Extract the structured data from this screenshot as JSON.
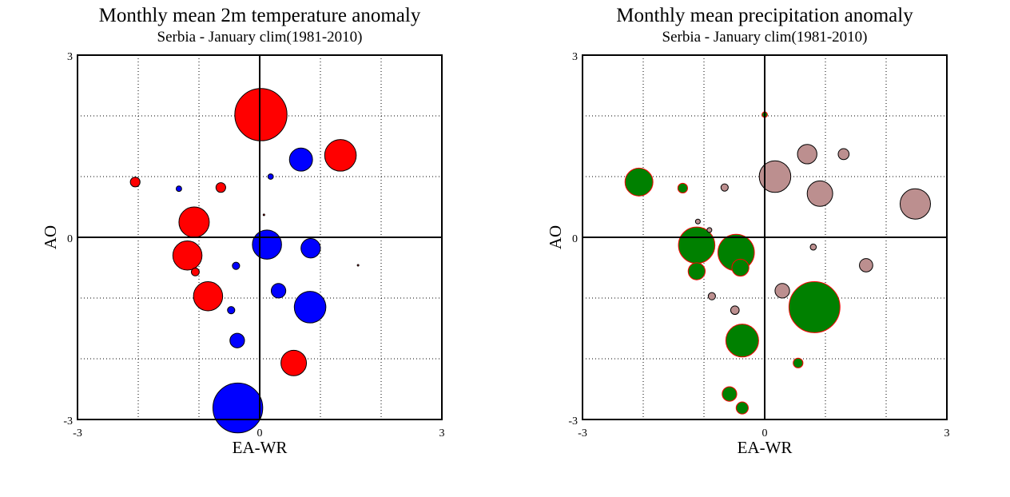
{
  "chart_data": [
    {
      "type": "scatter",
      "title": "Monthly mean 2m temperature anomaly",
      "subtitle": "Serbia - January  clim(1981-2010)",
      "xlabel": "EA-WR",
      "ylabel": "AO",
      "xlim": [
        -3,
        3
      ],
      "ylim": [
        -3,
        3
      ],
      "xticks": [
        "-3",
        "0",
        "3"
      ],
      "yticks": [
        "-3",
        "0",
        "3"
      ],
      "grid": true,
      "colors": {
        "positive": "#ff0000",
        "negative": "#0000ff"
      },
      "points": [
        {
          "x": 0.02,
          "y": 2.02,
          "s": 0.43,
          "sign": "pos"
        },
        {
          "x": 1.33,
          "y": 1.35,
          "s": 0.26,
          "sign": "pos"
        },
        {
          "x": 0.68,
          "y": 1.28,
          "s": 0.19,
          "sign": "neg"
        },
        {
          "x": -2.05,
          "y": 0.91,
          "s": 0.08,
          "sign": "pos"
        },
        {
          "x": -1.33,
          "y": 0.8,
          "s": 0.045,
          "sign": "neg"
        },
        {
          "x": -0.64,
          "y": 0.82,
          "s": 0.08,
          "sign": "pos"
        },
        {
          "x": 0.18,
          "y": 1.0,
          "s": 0.045,
          "sign": "neg"
        },
        {
          "x": -1.08,
          "y": 0.25,
          "s": 0.25,
          "sign": "pos"
        },
        {
          "x": -1.19,
          "y": -0.3,
          "s": 0.24,
          "sign": "pos"
        },
        {
          "x": -1.06,
          "y": -0.57,
          "s": 0.065,
          "sign": "pos"
        },
        {
          "x": 0.12,
          "y": -0.12,
          "s": 0.24,
          "sign": "neg"
        },
        {
          "x": 0.84,
          "y": -0.18,
          "s": 0.16,
          "sign": "neg"
        },
        {
          "x": -0.39,
          "y": -0.47,
          "s": 0.06,
          "sign": "neg"
        },
        {
          "x": 0.31,
          "y": -0.88,
          "s": 0.12,
          "sign": "neg"
        },
        {
          "x": -0.85,
          "y": -0.97,
          "s": 0.24,
          "sign": "pos"
        },
        {
          "x": -0.47,
          "y": -1.2,
          "s": 0.06,
          "sign": "neg"
        },
        {
          "x": 0.83,
          "y": -1.15,
          "s": 0.26,
          "sign": "neg"
        },
        {
          "x": -0.37,
          "y": -1.7,
          "s": 0.12,
          "sign": "neg"
        },
        {
          "x": 0.56,
          "y": -2.07,
          "s": 0.21,
          "sign": "pos"
        },
        {
          "x": -0.36,
          "y": -2.81,
          "s": 0.41,
          "sign": "neg"
        },
        {
          "x": 0.07,
          "y": 0.37,
          "s": 0.012,
          "sign": "pos"
        },
        {
          "x": 1.62,
          "y": -0.46,
          "s": 0.012,
          "sign": "pos"
        }
      ]
    },
    {
      "type": "scatter",
      "title": "Monthly mean precipitation anomaly",
      "subtitle": "Serbia - January  clim(1981-2010)",
      "xlabel": "EA-WR",
      "ylabel": "AO",
      "xlim": [
        -3,
        3
      ],
      "ylim": [
        -3,
        3
      ],
      "xticks": [
        "-3",
        "0",
        "3"
      ],
      "yticks": [
        "-3",
        "0",
        "3"
      ],
      "grid": true,
      "colors": {
        "wet": "#008000",
        "wet_edge": "#ff0000",
        "dry": "#bc8f8f",
        "dry_edge": "#000000"
      },
      "points": [
        {
          "x": 0.0,
          "y": 2.02,
          "s": 0.045,
          "sign": "wet"
        },
        {
          "x": -2.07,
          "y": 0.91,
          "s": 0.23,
          "sign": "wet"
        },
        {
          "x": -1.35,
          "y": 0.81,
          "s": 0.08,
          "sign": "wet"
        },
        {
          "x": -1.12,
          "y": -0.13,
          "s": 0.3,
          "sign": "wet"
        },
        {
          "x": -0.47,
          "y": -0.25,
          "s": 0.3,
          "sign": "wet"
        },
        {
          "x": -1.12,
          "y": -0.56,
          "s": 0.14,
          "sign": "wet"
        },
        {
          "x": -0.4,
          "y": -0.5,
          "s": 0.14,
          "sign": "wet"
        },
        {
          "x": 0.82,
          "y": -1.15,
          "s": 0.42,
          "sign": "wet"
        },
        {
          "x": -0.37,
          "y": -1.7,
          "s": 0.27,
          "sign": "wet"
        },
        {
          "x": 0.55,
          "y": -2.07,
          "s": 0.08,
          "sign": "wet"
        },
        {
          "x": -0.58,
          "y": -2.58,
          "s": 0.12,
          "sign": "wet"
        },
        {
          "x": -0.37,
          "y": -2.81,
          "s": 0.1,
          "sign": "wet"
        },
        {
          "x": 0.17,
          "y": 1.0,
          "s": 0.26,
          "sign": "dry"
        },
        {
          "x": 0.7,
          "y": 1.37,
          "s": 0.16,
          "sign": "dry"
        },
        {
          "x": 1.3,
          "y": 1.37,
          "s": 0.09,
          "sign": "dry"
        },
        {
          "x": 0.91,
          "y": 0.72,
          "s": 0.21,
          "sign": "dry"
        },
        {
          "x": 2.48,
          "y": 0.55,
          "s": 0.25,
          "sign": "dry"
        },
        {
          "x": -0.66,
          "y": 0.82,
          "s": 0.06,
          "sign": "dry"
        },
        {
          "x": -1.1,
          "y": 0.26,
          "s": 0.04,
          "sign": "dry"
        },
        {
          "x": -0.91,
          "y": 0.12,
          "s": 0.04,
          "sign": "dry"
        },
        {
          "x": 0.8,
          "y": -0.16,
          "s": 0.05,
          "sign": "dry"
        },
        {
          "x": 1.67,
          "y": -0.46,
          "s": 0.11,
          "sign": "dry"
        },
        {
          "x": 0.29,
          "y": -0.88,
          "s": 0.12,
          "sign": "dry"
        },
        {
          "x": -0.87,
          "y": -0.97,
          "s": 0.06,
          "sign": "dry"
        },
        {
          "x": -0.49,
          "y": -1.2,
          "s": 0.07,
          "sign": "dry"
        }
      ]
    }
  ]
}
